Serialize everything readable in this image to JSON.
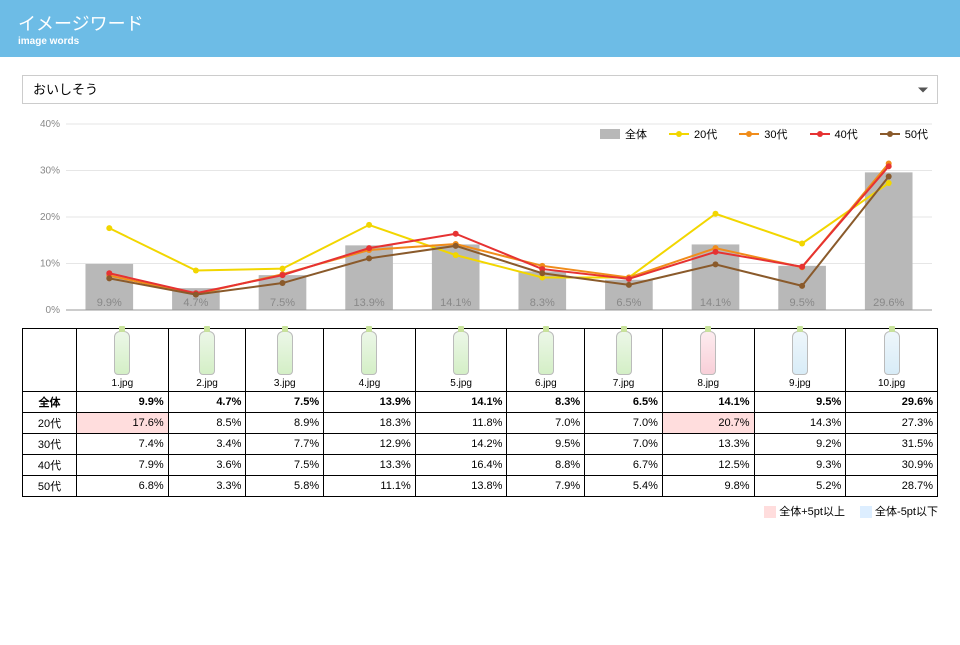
{
  "header": {
    "title_jp": "イメージワード",
    "title_en": "image words"
  },
  "dropdown": {
    "selected": "おいしそう"
  },
  "chart": {
    "type": "bar+line",
    "ylim": [
      0,
      40
    ],
    "ytick_step": 10,
    "y_format_suffix": "%",
    "categories": [
      "1.jpg",
      "2.jpg",
      "3.jpg",
      "4.jpg",
      "5.jpg",
      "6.jpg",
      "7.jpg",
      "8.jpg",
      "9.jpg",
      "10.jpg"
    ],
    "bar": {
      "label": "全体",
      "color": "#b8b8b8",
      "values": [
        9.9,
        4.7,
        7.5,
        13.9,
        14.1,
        8.3,
        6.5,
        14.1,
        9.5,
        29.6
      ]
    },
    "bar_label_color": "#888888",
    "bar_label_fontsize": 11,
    "lines": [
      {
        "label": "20代",
        "color": "#f2d600",
        "values": [
          17.6,
          8.5,
          8.9,
          18.3,
          11.8,
          7.0,
          7.0,
          20.7,
          14.3,
          27.3
        ]
      },
      {
        "label": "30代",
        "color": "#f08c1a",
        "values": [
          7.4,
          3.4,
          7.7,
          12.9,
          14.2,
          9.5,
          7.0,
          13.3,
          9.2,
          31.5
        ]
      },
      {
        "label": "40代",
        "color": "#e63232",
        "values": [
          7.9,
          3.6,
          7.5,
          13.3,
          16.4,
          8.8,
          6.7,
          12.5,
          9.3,
          30.9
        ]
      },
      {
        "label": "50代",
        "color": "#8a5a2b",
        "values": [
          6.8,
          3.3,
          5.8,
          11.1,
          13.8,
          7.9,
          5.4,
          9.8,
          5.2,
          28.7
        ]
      }
    ],
    "line_width": 2,
    "marker_radius": 3,
    "background": "#ffffff",
    "grid_color": "#e6e6e6",
    "axis_font_size": 10,
    "axis_color": "#888888"
  },
  "table": {
    "row_labels": [
      "全体",
      "20代",
      "30代",
      "40代",
      "50代"
    ],
    "columns": [
      "1.jpg",
      "2.jpg",
      "3.jpg",
      "4.jpg",
      "5.jpg",
      "6.jpg",
      "7.jpg",
      "8.jpg",
      "9.jpg",
      "10.jpg"
    ],
    "rows": [
      [
        "9.9%",
        "4.7%",
        "7.5%",
        "13.9%",
        "14.1%",
        "8.3%",
        "6.5%",
        "14.1%",
        "9.5%",
        "29.6%"
      ],
      [
        "17.6%",
        "8.5%",
        "8.9%",
        "18.3%",
        "11.8%",
        "7.0%",
        "7.0%",
        "20.7%",
        "14.3%",
        "27.3%"
      ],
      [
        "7.4%",
        "3.4%",
        "7.7%",
        "12.9%",
        "14.2%",
        "9.5%",
        "7.0%",
        "13.3%",
        "9.2%",
        "31.5%"
      ],
      [
        "7.9%",
        "3.6%",
        "7.5%",
        "13.3%",
        "16.4%",
        "8.8%",
        "6.7%",
        "12.5%",
        "9.3%",
        "30.9%"
      ],
      [
        "6.8%",
        "3.3%",
        "5.8%",
        "11.1%",
        "13.8%",
        "7.9%",
        "5.4%",
        "9.8%",
        "5.2%",
        "28.7%"
      ]
    ],
    "highlight_pink": [
      [
        1,
        0
      ],
      [
        1,
        7
      ]
    ],
    "highlight_blue": [],
    "bold_row": 0
  },
  "footnote": {
    "pink_label": "全体+5pt以上",
    "blue_label": "全体-5pt以下"
  }
}
